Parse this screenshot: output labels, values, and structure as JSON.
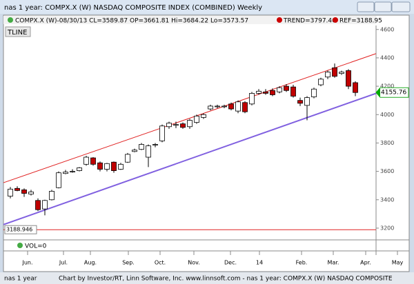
{
  "window": {
    "title": "nas 1 year: COMPX.X (W) NASDAQ COMPOSITE INDEX (COMBINED) Weekly",
    "tline_button": "TLINE",
    "status_left": "nas 1 year",
    "status_right": "Chart by Investor/RT, Linn Software, Inc. www.linnsoft.com - nas 1 year: COMPX.X (W) NASDAQ COMPOSITE"
  },
  "chart_data": {
    "type": "candlestick",
    "legend": {
      "quote": "COMPX.X (W)-08/30/13 CL=3589.87 OP=3661.81 Hi=3684.22 Lo=3573.57",
      "trend": "TREND=3797.46",
      "ref": "REF=3188.95",
      "volume": "VOL=0"
    },
    "open": [
      3425,
      3480,
      3470,
      3440,
      3395,
      3335,
      3400,
      3485,
      3585,
      3595,
      3605,
      3650,
      3695,
      3660,
      3615,
      3665,
      3615,
      3665,
      3740,
      3755,
      3700,
      3785,
      3815,
      3915,
      3925,
      3935,
      3915,
      3945,
      3980,
      4040,
      4055,
      4055,
      4075,
      4025,
      4085,
      4075,
      4150,
      4160,
      4170,
      4160,
      4200,
      4195,
      4100,
      4065,
      4125,
      4210,
      4265,
      4330,
      4290,
      4310,
      4225
    ],
    "high": [
      3490,
      3495,
      3480,
      3470,
      3410,
      3400,
      3470,
      3600,
      3610,
      3615,
      3630,
      3710,
      3700,
      3670,
      3660,
      3670,
      3660,
      3730,
      3760,
      3800,
      3790,
      3800,
      3930,
      3950,
      3950,
      3945,
      3970,
      4000,
      4010,
      4070,
      4070,
      4070,
      4085,
      4100,
      4095,
      4160,
      4180,
      4180,
      4185,
      4200,
      4215,
      4210,
      4120,
      4130,
      4190,
      4260,
      4310,
      4360,
      4310,
      4320,
      4235
    ],
    "low": [
      3410,
      3460,
      3420,
      3430,
      3320,
      3290,
      3395,
      3480,
      3580,
      3590,
      3600,
      3640,
      3640,
      3600,
      3600,
      3590,
      3610,
      3660,
      3735,
      3750,
      3630,
      3770,
      3805,
      3900,
      3905,
      3900,
      3900,
      3935,
      3970,
      4030,
      4045,
      4045,
      4030,
      4010,
      4010,
      4065,
      4140,
      4140,
      4130,
      4150,
      4160,
      4120,
      4060,
      3960,
      4115,
      4200,
      4250,
      4260,
      4280,
      4180,
      4130
    ],
    "close": [
      3475,
      3465,
      3445,
      3455,
      3330,
      3395,
      3460,
      3590,
      3595,
      3600,
      3625,
      3700,
      3650,
      3615,
      3655,
      3605,
      3650,
      3720,
      3750,
      3790,
      3780,
      3790,
      3920,
      3940,
      3930,
      3910,
      3960,
      3990,
      4000,
      4060,
      4060,
      4060,
      4040,
      4090,
      4020,
      4150,
      4165,
      4150,
      4140,
      4190,
      4170,
      4130,
      4080,
      4120,
      4180,
      4250,
      4300,
      4270,
      4300,
      4200,
      4155.76
    ],
    "up_color": "#ffffff",
    "down_color": "#c00000",
    "lines": [
      {
        "color": "#e02020",
        "values": [
          3520,
          4430
        ]
      },
      {
        "color": "#8060e0",
        "values": [
          3225,
          4150
        ]
      }
    ],
    "ref_line": 3188.946,
    "ref_color": "#e02020",
    "last_price": 4155.76,
    "xlim": [
      -1,
      53
    ],
    "ylim": [
      3122,
      4628
    ],
    "yticks": [
      3200,
      3400,
      3600,
      3800,
      4000,
      4200,
      4400,
      4600
    ],
    "xticks": [
      {
        "value": 2.5,
        "label": "Jun."
      },
      {
        "value": 7.7,
        "label": "Jul."
      },
      {
        "value": 11.6,
        "label": "Aug."
      },
      {
        "value": 17.1,
        "label": "Sep."
      },
      {
        "value": 21.7,
        "label": "Oct."
      },
      {
        "value": 26.6,
        "label": "Nov."
      },
      {
        "value": 31.9,
        "label": "Dec."
      },
      {
        "value": 36.1,
        "label": "14"
      },
      {
        "value": 42.2,
        "label": "Feb."
      },
      {
        "value": 46.8,
        "label": "Mar."
      },
      {
        "value": 51.5,
        "label": "Apr."
      },
      {
        "value": 56.1,
        "label": "May"
      }
    ]
  }
}
